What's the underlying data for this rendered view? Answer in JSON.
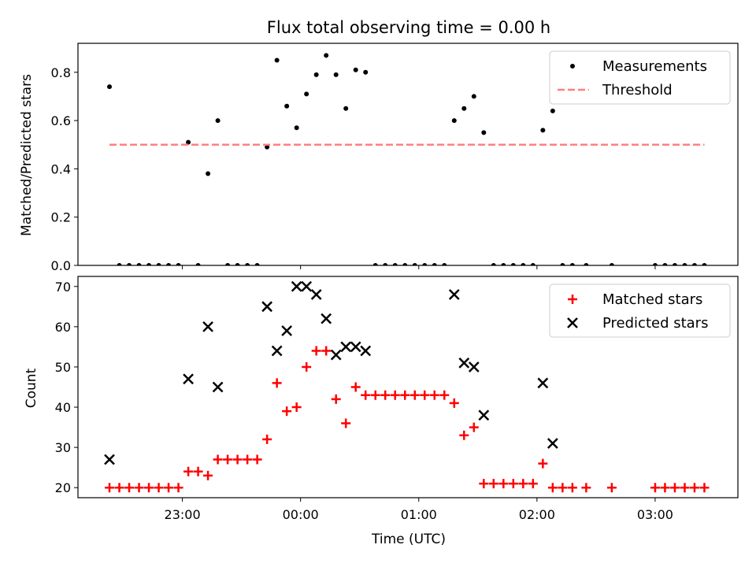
{
  "chart_data": {
    "type": "scatter",
    "title": "Flux total observing time = 0.00 h",
    "xlabel": "Time (UTC)",
    "x_unit": "minutes since 00:00 UTC",
    "x_ticks": [
      {
        "v": -60,
        "label": "23:00"
      },
      {
        "v": 0,
        "label": "00:00"
      },
      {
        "v": 60,
        "label": "01:00"
      },
      {
        "v": 120,
        "label": "02:00"
      },
      {
        "v": 180,
        "label": "03:00"
      }
    ],
    "xlim": [
      -113,
      222
    ],
    "panels": [
      {
        "id": "ratio",
        "ylabel": "Matched/Predicted stars",
        "ylim": [
          0,
          0.92
        ],
        "yticks": [
          {
            "v": 0,
            "label": "0.0"
          },
          {
            "v": 0.2,
            "label": "0.2"
          },
          {
            "v": 0.4,
            "label": "0.4"
          },
          {
            "v": 0.6,
            "label": "0.6"
          },
          {
            "v": 0.8,
            "label": "0.8"
          }
        ],
        "legend": "top-right",
        "series": [
          {
            "name": "Measurements",
            "marker": "dot",
            "color": "#000000",
            "points": [
              [
                -97,
                0.74
              ],
              [
                -92,
                0
              ],
              [
                -87,
                0
              ],
              [
                -82,
                0
              ],
              [
                -77,
                0
              ],
              [
                -72,
                0
              ],
              [
                -67,
                0
              ],
              [
                -62,
                0
              ],
              [
                -57,
                0.51
              ],
              [
                -52,
                0
              ],
              [
                -47,
                0.38
              ],
              [
                -42,
                0.6
              ],
              [
                -37,
                0
              ],
              [
                -32,
                0
              ],
              [
                -27,
                0
              ],
              [
                -22,
                0
              ],
              [
                -17,
                0.49
              ],
              [
                -12,
                0.85
              ],
              [
                -7,
                0.66
              ],
              [
                -2,
                0.57
              ],
              [
                3,
                0.71
              ],
              [
                8,
                0.79
              ],
              [
                13,
                0.87
              ],
              [
                18,
                0.79
              ],
              [
                23,
                0.65
              ],
              [
                28,
                0.81
              ],
              [
                33,
                0.8
              ],
              [
                38,
                0
              ],
              [
                43,
                0
              ],
              [
                48,
                0
              ],
              [
                53,
                0
              ],
              [
                58,
                0
              ],
              [
                63,
                0
              ],
              [
                68,
                0
              ],
              [
                73,
                0
              ],
              [
                78,
                0.6
              ],
              [
                83,
                0.65
              ],
              [
                88,
                0.7
              ],
              [
                93,
                0.55
              ],
              [
                98,
                0
              ],
              [
                103,
                0
              ],
              [
                108,
                0
              ],
              [
                113,
                0
              ],
              [
                118,
                0
              ],
              [
                123,
                0.56
              ],
              [
                128,
                0.64
              ],
              [
                133,
                0
              ],
              [
                138,
                0
              ],
              [
                145,
                0
              ],
              [
                158,
                0
              ],
              [
                180,
                0
              ],
              [
                185,
                0
              ],
              [
                190,
                0
              ],
              [
                195,
                0
              ],
              [
                200,
                0
              ],
              [
                205,
                0
              ]
            ]
          },
          {
            "name": "Threshold",
            "style": "dashed",
            "color": "#ff7f7f",
            "points": [
              [
                -97,
                0.5
              ],
              [
                205,
                0.5
              ]
            ]
          }
        ]
      },
      {
        "id": "counts",
        "ylabel": "Count",
        "ylim": [
          17.5,
          72.5
        ],
        "yticks": [
          {
            "v": 20,
            "label": "20"
          },
          {
            "v": 30,
            "label": "30"
          },
          {
            "v": 40,
            "label": "40"
          },
          {
            "v": 50,
            "label": "50"
          },
          {
            "v": 60,
            "label": "60"
          },
          {
            "v": 70,
            "label": "70"
          }
        ],
        "legend": "top-right",
        "series": [
          {
            "name": "Matched stars",
            "marker": "plus",
            "color": "#ff0000",
            "points": [
              [
                -97,
                20
              ],
              [
                -92,
                20
              ],
              [
                -87,
                20
              ],
              [
                -82,
                20
              ],
              [
                -77,
                20
              ],
              [
                -72,
                20
              ],
              [
                -67,
                20
              ],
              [
                -62,
                20
              ],
              [
                -57,
                24
              ],
              [
                -52,
                24
              ],
              [
                -47,
                23
              ],
              [
                -42,
                27
              ],
              [
                -37,
                27
              ],
              [
                -32,
                27
              ],
              [
                -27,
                27
              ],
              [
                -22,
                27
              ],
              [
                -17,
                32
              ],
              [
                -12,
                46
              ],
              [
                -7,
                39
              ],
              [
                -2,
                40
              ],
              [
                3,
                50
              ],
              [
                8,
                54
              ],
              [
                13,
                54
              ],
              [
                18,
                42
              ],
              [
                23,
                36
              ],
              [
                28,
                45
              ],
              [
                33,
                43
              ],
              [
                38,
                43
              ],
              [
                43,
                43
              ],
              [
                48,
                43
              ],
              [
                53,
                43
              ],
              [
                58,
                43
              ],
              [
                63,
                43
              ],
              [
                68,
                43
              ],
              [
                73,
                43
              ],
              [
                78,
                41
              ],
              [
                83,
                33
              ],
              [
                88,
                35
              ],
              [
                93,
                21
              ],
              [
                98,
                21
              ],
              [
                103,
                21
              ],
              [
                108,
                21
              ],
              [
                113,
                21
              ],
              [
                118,
                21
              ],
              [
                123,
                26
              ],
              [
                128,
                20
              ],
              [
                133,
                20
              ],
              [
                138,
                20
              ],
              [
                145,
                20
              ],
              [
                158,
                20
              ],
              [
                180,
                20
              ],
              [
                185,
                20
              ],
              [
                190,
                20
              ],
              [
                195,
                20
              ],
              [
                200,
                20
              ],
              [
                205,
                20
              ]
            ]
          },
          {
            "name": "Predicted stars",
            "marker": "x",
            "color": "#000000",
            "points": [
              [
                -97,
                27
              ],
              [
                -57,
                47
              ],
              [
                -47,
                60
              ],
              [
                -42,
                45
              ],
              [
                -17,
                65
              ],
              [
                -12,
                54
              ],
              [
                -7,
                59
              ],
              [
                -2,
                70
              ],
              [
                3,
                70
              ],
              [
                8,
                68
              ],
              [
                13,
                62
              ],
              [
                18,
                53
              ],
              [
                23,
                55
              ],
              [
                28,
                55
              ],
              [
                33,
                54
              ],
              [
                78,
                68
              ],
              [
                83,
                51
              ],
              [
                88,
                50
              ],
              [
                93,
                38
              ],
              [
                123,
                46
              ],
              [
                128,
                31
              ]
            ]
          }
        ]
      }
    ]
  }
}
